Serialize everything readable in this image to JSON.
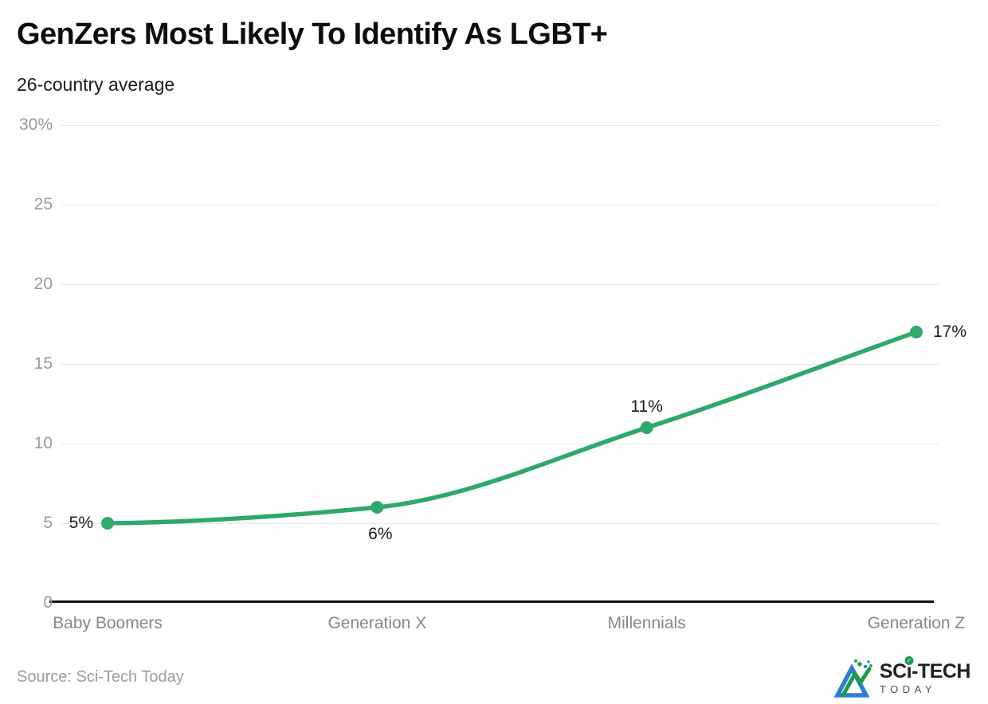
{
  "chart_data": {
    "type": "line",
    "title": "GenZers Most Likely To Identify As LGBT+",
    "subtitle": "26-country average",
    "categories": [
      "Baby Boomers",
      "Generation X",
      "Millennials",
      "Generation Z"
    ],
    "values": [
      5,
      6,
      11,
      17
    ],
    "point_labels": [
      "5%",
      "6%",
      "11%",
      "17%"
    ],
    "ylim": [
      0,
      30
    ],
    "yticks": [
      0,
      5,
      10,
      15,
      20,
      25,
      30
    ],
    "ytick_labels": [
      "0",
      "5",
      "10",
      "15",
      "20",
      "25",
      "30%"
    ],
    "grid": true,
    "legend": "none",
    "line_color": "#2ea96b",
    "point_color": "#2ea96b",
    "xlabel": "",
    "ylabel": ""
  },
  "footer": {
    "source": "Source: Sci-Tech Today",
    "logo": {
      "part_sc": "SC",
      "part_i": "ı",
      "check_glyph": "✓",
      "part_tech": "-TECH",
      "word2": "TODAY",
      "brand_blue": "#2e7fd2",
      "brand_green": "#1d9b4d"
    }
  }
}
